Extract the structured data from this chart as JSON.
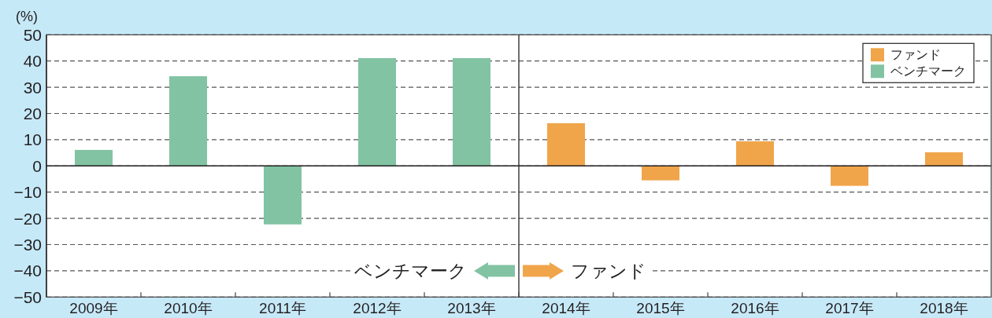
{
  "chart_data": {
    "type": "bar",
    "ylabel": "(%)",
    "categories": [
      "2009年",
      "2010年",
      "2011年",
      "2012年",
      "2013年",
      "2014年",
      "2015年",
      "2016年",
      "2017年",
      "2018年"
    ],
    "stacked": true,
    "series": [
      {
        "name": "ファンド",
        "color": "#f0a54b",
        "values": [
          null,
          null,
          null,
          null,
          null,
          16.3,
          -5.5,
          9.4,
          -7.6,
          5.2
        ]
      },
      {
        "name": "ベンチマーク",
        "color": "#82c3a3",
        "values": [
          6.1,
          34.2,
          -22.3,
          41.1,
          41.1,
          null,
          null,
          null,
          null,
          null
        ]
      }
    ],
    "ylim": [
      -50,
      50
    ],
    "yticks": [
      -50,
      -40,
      -30,
      -20,
      -10,
      0,
      10,
      20,
      30,
      40,
      50
    ],
    "grid": "y",
    "legend": "top right",
    "annotations": [
      "ベンチマーク",
      "ファンド"
    ]
  }
}
